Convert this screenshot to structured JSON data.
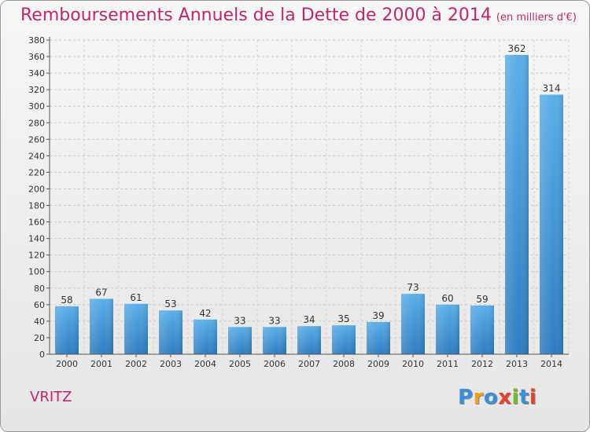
{
  "chart_data": {
    "type": "bar",
    "title": "Remboursements Annuels de la Dette de 2000 à 2014",
    "subtitle": "(en milliers d'€)",
    "categories": [
      "2000",
      "2001",
      "2002",
      "2003",
      "2004",
      "2005",
      "2006",
      "2007",
      "2008",
      "2009",
      "2010",
      "2011",
      "2012",
      "2013",
      "2014"
    ],
    "values": [
      58,
      67,
      61,
      53,
      42,
      33,
      33,
      34,
      35,
      39,
      73,
      60,
      59,
      362,
      314
    ],
    "ylim": [
      0,
      380
    ],
    "yticks": [
      0,
      20,
      40,
      60,
      80,
      100,
      120,
      140,
      160,
      180,
      200,
      220,
      240,
      260,
      280,
      300,
      320,
      340,
      360,
      380
    ],
    "grid": true,
    "legend": "none"
  },
  "commune": "VRITZ",
  "brand": {
    "letters": [
      "P",
      "r",
      "o",
      "x",
      "i",
      "t",
      "i"
    ],
    "colors": [
      "#3a8fd6",
      "#f0a21a",
      "#3a8fd6",
      "#e8402a",
      "#7ab829",
      "#3a8fd6",
      "#e8402a"
    ]
  },
  "colors": {
    "title": "#c0266d",
    "bar_top": "#5aaee8",
    "bar_bottom": "#2f7cc0"
  }
}
